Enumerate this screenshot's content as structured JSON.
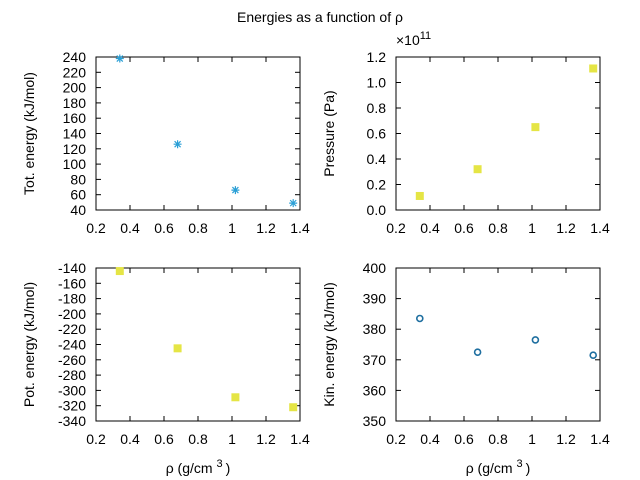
{
  "figure": {
    "title": "Energies as a function of ρ"
  },
  "chart_data": [
    {
      "type": "scatter",
      "panel": "top-left",
      "xlabel": "",
      "ylabel": "Tot. energy (kJ/mol)",
      "xlim": [
        0.2,
        1.4
      ],
      "ylim": [
        40,
        240
      ],
      "xticks": [
        "0.2",
        "0.4",
        "0.6",
        "0.8",
        "1",
        "1.2",
        "1.4"
      ],
      "yticks": [
        "40",
        "60",
        "80",
        "100",
        "120",
        "140",
        "160",
        "180",
        "200",
        "220",
        "240"
      ],
      "marker": "asterisk",
      "color": "#2a9fd6",
      "series": [
        {
          "x": [
            0.34,
            0.68,
            1.02,
            1.36
          ],
          "y": [
            238,
            126,
            66,
            49
          ]
        }
      ]
    },
    {
      "type": "scatter",
      "panel": "top-right",
      "xlabel": "",
      "ylabel": "Pressure (Pa)",
      "exponent_label": "×10",
      "exponent_sup": "11",
      "xlim": [
        0.2,
        1.4
      ],
      "ylim": [
        0.0,
        1.2
      ],
      "xticks": [
        "0.2",
        "0.4",
        "0.6",
        "0.8",
        "1",
        "1.2",
        "1.4"
      ],
      "yticks": [
        "0.0",
        "0.2",
        "0.4",
        "0.6",
        "0.8",
        "1.0",
        "1.2"
      ],
      "marker": "square",
      "color": "#e5e545",
      "series": [
        {
          "x": [
            0.34,
            0.68,
            1.02,
            1.36
          ],
          "y": [
            0.11,
            0.32,
            0.65,
            1.11
          ]
        }
      ]
    },
    {
      "type": "scatter",
      "panel": "bottom-left",
      "xlabel": "ρ (g/cm",
      "xlabel_sup": "3",
      "xlabel_end": ")",
      "ylabel": "Pot. energy (kJ/mol)",
      "xlim": [
        0.2,
        1.4
      ],
      "ylim": [
        -340,
        -140
      ],
      "xticks": [
        "0.2",
        "0.4",
        "0.6",
        "0.8",
        "1",
        "1.2",
        "1.4"
      ],
      "yticks": [
        "-140",
        "-160",
        "-180",
        "-200",
        "-220",
        "-240",
        "-260",
        "-280",
        "-300",
        "-320",
        "-340"
      ],
      "marker": "square",
      "color": "#e5e545",
      "series": [
        {
          "x": [
            0.34,
            0.68,
            1.02,
            1.36
          ],
          "y": [
            -144,
            -245,
            -309,
            -322
          ]
        }
      ]
    },
    {
      "type": "scatter",
      "panel": "bottom-right",
      "xlabel": "ρ (g/cm",
      "xlabel_sup": "3",
      "xlabel_end": ")",
      "ylabel": "Kin. energy (kJ/mol)",
      "xlim": [
        0.2,
        1.4
      ],
      "ylim": [
        350,
        400
      ],
      "xticks": [
        "0.2",
        "0.4",
        "0.6",
        "0.8",
        "1",
        "1.2",
        "1.4"
      ],
      "yticks": [
        "350",
        "360",
        "370",
        "380",
        "390",
        "400"
      ],
      "marker": "circle",
      "color": "#1f6fa0",
      "series": [
        {
          "x": [
            0.34,
            0.68,
            1.02,
            1.36
          ],
          "y": [
            383.5,
            372.5,
            376.5,
            371.5
          ]
        }
      ]
    }
  ]
}
